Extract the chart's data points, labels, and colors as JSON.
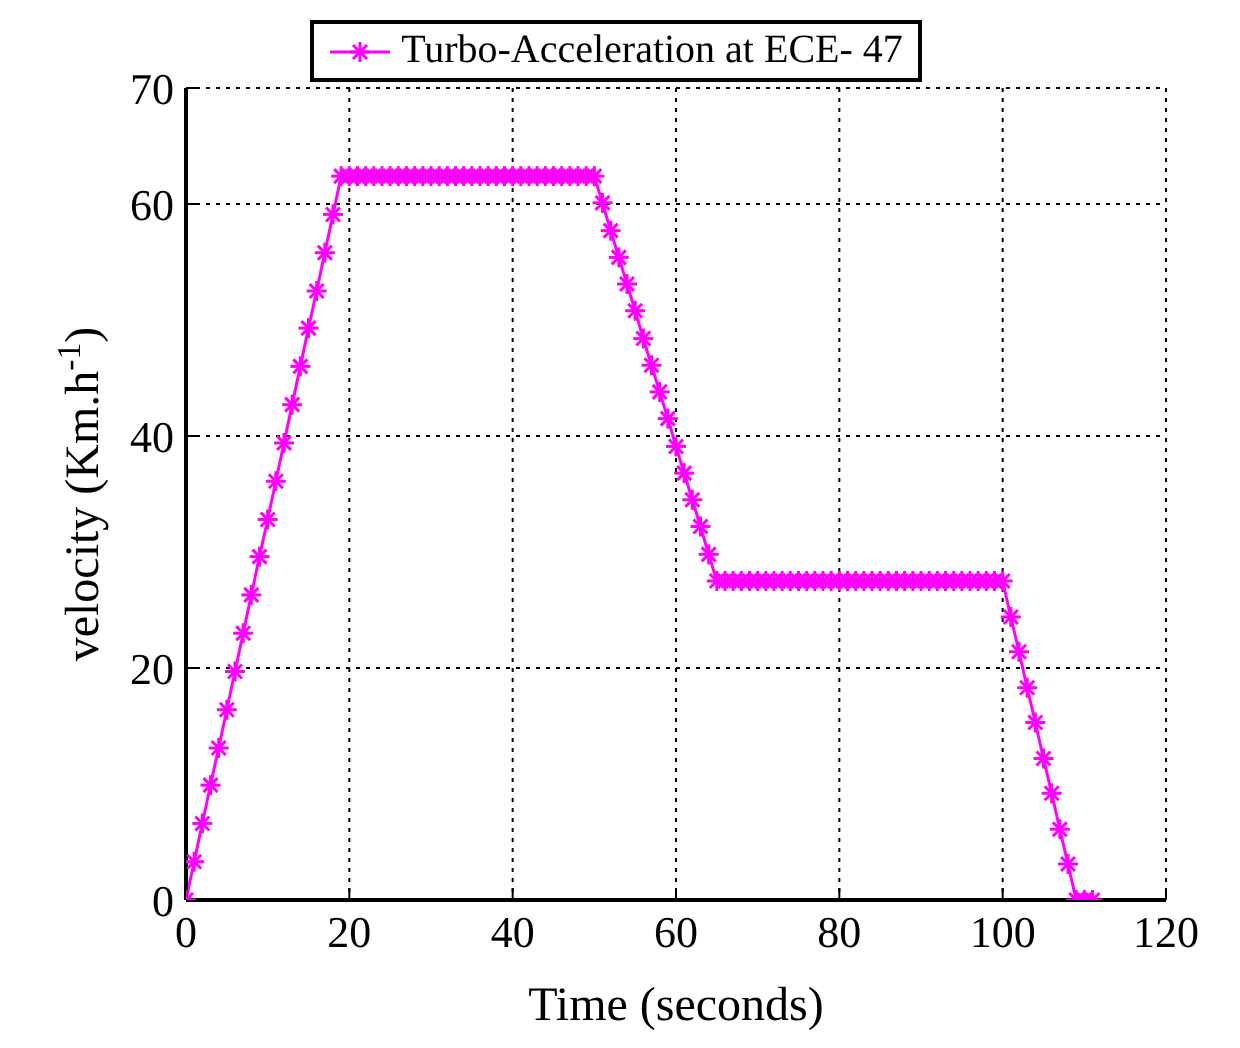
{
  "chart_data": {
    "type": "line",
    "xlabel": "Time (seconds)",
    "ylabel": "velocity (Km.h$^{-1}$)",
    "x": [
      0,
      1,
      2,
      3,
      4,
      5,
      6,
      7,
      8,
      9,
      10,
      11,
      12,
      13,
      14,
      15,
      16,
      17,
      18,
      19,
      20,
      21,
      22,
      23,
      24,
      25,
      26,
      27,
      28,
      29,
      30,
      31,
      32,
      33,
      34,
      35,
      36,
      37,
      38,
      39,
      40,
      41,
      42,
      43,
      44,
      45,
      46,
      47,
      48,
      49,
      50,
      51,
      52,
      53,
      54,
      55,
      56,
      57,
      58,
      59,
      60,
      61,
      62,
      63,
      64,
      65,
      66,
      67,
      68,
      69,
      70,
      71,
      72,
      73,
      74,
      75,
      76,
      77,
      78,
      79,
      80,
      81,
      82,
      83,
      84,
      85,
      86,
      87,
      88,
      89,
      90,
      91,
      92,
      93,
      94,
      95,
      96,
      97,
      98,
      99,
      100,
      101,
      102,
      103,
      104,
      105,
      106,
      107,
      108,
      109,
      110,
      111
    ],
    "series": [
      {
        "name": "Turbo-Acceleration at ECE- 47",
        "color": "#ff00ff",
        "values": [
          0,
          3.3,
          6.6,
          9.9,
          13.1,
          16.4,
          19.7,
          23,
          26.3,
          29.6,
          32.8,
          36.1,
          39.4,
          42.7,
          46,
          49.3,
          52.5,
          55.8,
          59.1,
          62.4,
          62.4,
          62.4,
          62.4,
          62.4,
          62.4,
          62.4,
          62.4,
          62.4,
          62.4,
          62.4,
          62.4,
          62.4,
          62.4,
          62.4,
          62.4,
          62.4,
          62.4,
          62.4,
          62.4,
          62.4,
          62.4,
          62.4,
          62.4,
          62.4,
          62.4,
          62.4,
          62.4,
          62.4,
          62.4,
          62.4,
          62.4,
          60.1,
          57.7,
          55.4,
          53.1,
          50.8,
          48.4,
          46.1,
          43.8,
          41.5,
          39.1,
          36.8,
          34.5,
          32.2,
          29.8,
          27.5,
          27.5,
          27.5,
          27.5,
          27.5,
          27.5,
          27.5,
          27.5,
          27.5,
          27.5,
          27.5,
          27.5,
          27.5,
          27.5,
          27.5,
          27.5,
          27.5,
          27.5,
          27.5,
          27.5,
          27.5,
          27.5,
          27.5,
          27.5,
          27.5,
          27.5,
          27.5,
          27.5,
          27.5,
          27.5,
          27.5,
          27.5,
          27.5,
          27.5,
          27.5,
          27.5,
          24.4,
          21.4,
          18.3,
          15.3,
          12.2,
          9.2,
          6.1,
          3.1,
          0,
          0,
          0
        ]
      }
    ],
    "xlim": [
      0,
      120
    ],
    "xticks": [
      0,
      20,
      40,
      60,
      80,
      100,
      120
    ],
    "ylim": [
      0,
      70
    ],
    "yticks": [
      0,
      20,
      40,
      60,
      70
    ],
    "grid": true,
    "legend": "top",
    "marker": "cross",
    "line_style": "solid"
  }
}
